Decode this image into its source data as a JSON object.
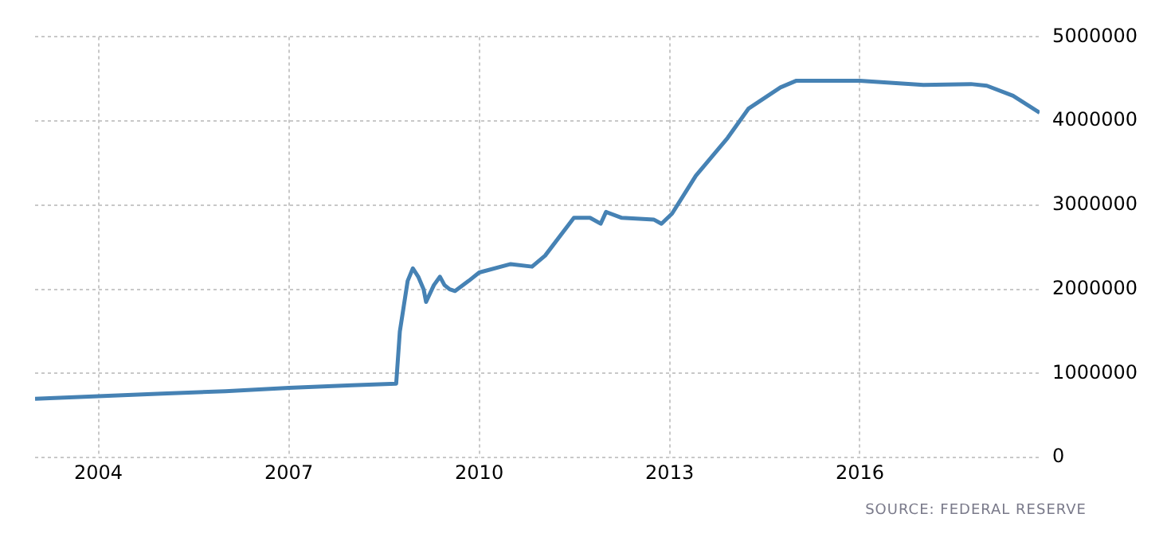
{
  "chart_data": {
    "type": "line",
    "annotations": [
      "SOURCE: FEDERAL RESERVE"
    ],
    "x": [
      "2003-01",
      "2004-01",
      "2005-01",
      "2006-01",
      "2007-01",
      "2008-01",
      "2008-09-10",
      "2008-10-01",
      "2008-11-15",
      "2008-12-15",
      "2009-01-15",
      "2009-02-15",
      "2009-03-01",
      "2009-04-15",
      "2009-05-20",
      "2009-06-15",
      "2009-07-15",
      "2009-08-15",
      "2009-11-01",
      "2010-01-01",
      "2010-07-01",
      "2010-11-01",
      "2011-01-15",
      "2011-06-30",
      "2011-10-01",
      "2011-12-01",
      "2012-01-01",
      "2012-04-01",
      "2012-10-01",
      "2012-11-15",
      "2013-01-15",
      "2013-06-01",
      "2013-12-01",
      "2014-04-01",
      "2014-10-01",
      "2015-01-01",
      "2016-01-01",
      "2017-01-01",
      "2017-10-01",
      "2018-01-01",
      "2018-06-01",
      "2018-11-01"
    ],
    "series": [
      {
        "color": "#4682b4",
        "values": [
          700000,
          730000,
          760000,
          790000,
          830000,
          860000,
          880000,
          1500000,
          2100000,
          2250000,
          2150000,
          2000000,
          1850000,
          2050000,
          2150000,
          2050000,
          2000000,
          1980000,
          2100000,
          2200000,
          2300000,
          2270000,
          2400000,
          2850000,
          2850000,
          2780000,
          2920000,
          2850000,
          2830000,
          2780000,
          2900000,
          3350000,
          3800000,
          4150000,
          4400000,
          4480000,
          4480000,
          4430000,
          4440000,
          4420000,
          4300000,
          4100000
        ]
      }
    ],
    "xlim": [
      "2003-01",
      "2018-11"
    ],
    "xticks": [
      "2004",
      "2007",
      "2010",
      "2013",
      "2016"
    ],
    "ylim": [
      0,
      5000000
    ],
    "yticks": [
      0,
      1000000,
      2000000,
      3000000,
      4000000,
      5000000
    ],
    "grid": true,
    "legend": false,
    "marker": "none",
    "line_style": "solid"
  }
}
